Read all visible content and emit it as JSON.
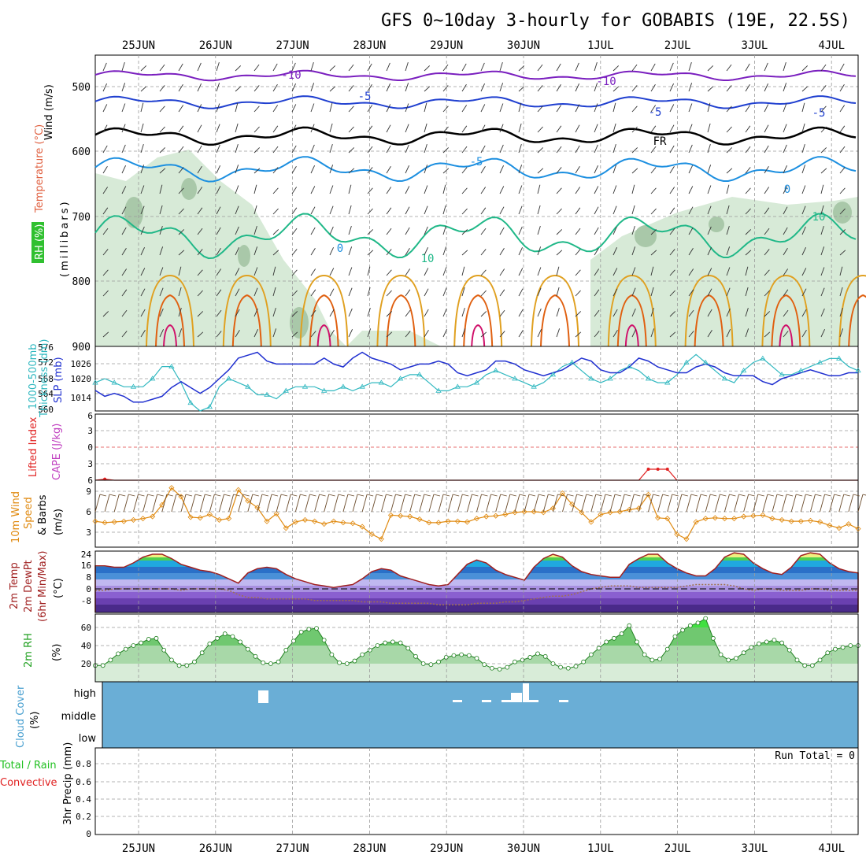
{
  "title": "GFS 0~10day 3-hourly for GOBABIS (19E, 22.5S)",
  "dates": [
    "25JUN",
    "26JUN",
    "27JUN",
    "28JUN",
    "29JUN",
    "30JUN",
    "1JUL",
    "2JUL",
    "3JUL",
    "4JUL"
  ],
  "run_total": "Run Total = 0",
  "colors": {
    "frame": "#000000",
    "grid": "#9a9a9a",
    "rh_fill": "#d7ead7",
    "rh_fill_dark": "#a9c8a9",
    "t_minus10": "#7a1fbf",
    "t_minus5": "#2040d0",
    "t_5": "#1c8fe0",
    "t_10": "#20b888",
    "t_warm": "#e0a020",
    "t_hot": "#e06010",
    "t_vhot": "#d0106a",
    "thickness": "#30b8c0",
    "slp": "#2030d0",
    "lifted": "#e02020",
    "cape": "#c040c0",
    "wind": "#e08a10",
    "temp_line": "#a02020",
    "dew_line": "#a07050",
    "rh2m": "#208020",
    "cloud": "#6aaed6",
    "precip_total": "#20c020",
    "precip_conv": "#e02020"
  },
  "panels": {
    "upper": {
      "label_wind": "Wind (m/s)",
      "label_temp": "Temperature (°C)",
      "label_rh": "RH (%)",
      "label_mb": "(millibars)",
      "pressure_ticks": [
        "500",
        "600",
        "700",
        "800",
        "900"
      ],
      "contour_labels": [
        "-10",
        "-10",
        "-5",
        "-5",
        "FR",
        "-5",
        "0",
        "10",
        "-5",
        "0",
        "10"
      ]
    },
    "thickness_slp": {
      "label_a": "1000-500mb",
      "label_b": "Thickness (dm)",
      "label_c": "SLP (mb)",
      "left_ticks": [
        "576",
        "572",
        "568",
        "564",
        "560"
      ],
      "right_ticks": [
        "1026",
        "1020",
        "1014"
      ]
    },
    "li_cape": {
      "label_a": "Lifted Index",
      "label_b": "CAPE (J/kg)",
      "ticks": [
        "6",
        "3",
        "0",
        "3",
        "6"
      ]
    },
    "wind10m": {
      "label_a": "10m Wind",
      "label_b": "Speed",
      "label_c": "& Barbs",
      "label_d": "(m/s)",
      "ticks": [
        "9",
        "6",
        "3"
      ]
    },
    "temp2m": {
      "label_a": "2m Temp",
      "label_b": "2m DewPt",
      "label_c": "(6hr Min/Max)",
      "label_d": "(°C)",
      "ticks": [
        "24",
        "16",
        "8",
        "0",
        "-8"
      ]
    },
    "rh2m": {
      "label_a": "2m RH",
      "label_b": "(%)",
      "ticks": [
        "60",
        "40",
        "20"
      ]
    },
    "cloud": {
      "label_a": "Cloud Cover",
      "label_b": "(%)",
      "levels": [
        "high",
        "middle",
        "low"
      ]
    },
    "precip": {
      "label_a": "Total / Rain",
      "label_b": "Convective",
      "label_c": "3hr Precip (mm)",
      "ticks": [
        "0.8",
        "0.6",
        "0.4",
        "0.2",
        "0"
      ]
    }
  },
  "chart_data": [
    {
      "type": "line",
      "title": "1000-500mb Thickness (dm) / SLP (mb)",
      "series": [
        {
          "name": "Thickness",
          "values": [
            567,
            568,
            567,
            566,
            566,
            566,
            568,
            571,
            571,
            567,
            562,
            560,
            561,
            566,
            568,
            567,
            566,
            564,
            564,
            563,
            565,
            566,
            566,
            566,
            565,
            565,
            566,
            565,
            566,
            567,
            567,
            566,
            568,
            569,
            569,
            567,
            565,
            565,
            566,
            566,
            567,
            569,
            570,
            569,
            568,
            567,
            566,
            567,
            569,
            571,
            572,
            570,
            568,
            567,
            568,
            570,
            571,
            570,
            568,
            567,
            567,
            569,
            572,
            574,
            572,
            570,
            568,
            567,
            570,
            572,
            573,
            571,
            569,
            569,
            570,
            571,
            572,
            573,
            573,
            571,
            570
          ]
        },
        {
          "name": "SLP",
          "values": [
            1015,
            1013,
            1014,
            1013,
            1011,
            1011,
            1012,
            1013,
            1016,
            1018,
            1016,
            1014,
            1016,
            1019,
            1022,
            1026,
            1027,
            1028,
            1025,
            1024,
            1024,
            1024,
            1024,
            1024,
            1026,
            1024,
            1023,
            1026,
            1028,
            1026,
            1025,
            1024,
            1022,
            1023,
            1024,
            1024,
            1025,
            1024,
            1021,
            1020,
            1021,
            1022,
            1025,
            1025,
            1024,
            1022,
            1021,
            1020,
            1021,
            1022,
            1024,
            1026,
            1025,
            1022,
            1021,
            1021,
            1023,
            1026,
            1025,
            1023,
            1022,
            1021,
            1021,
            1023,
            1024,
            1023,
            1021,
            1020,
            1020,
            1020,
            1018,
            1017,
            1019,
            1020,
            1021,
            1022,
            1021,
            1020,
            1020,
            1021,
            1021
          ]
        }
      ]
    },
    {
      "type": "line",
      "title": "10m Wind Speed (m/s)",
      "series": [
        {
          "name": "Wind Speed",
          "values": [
            4.6,
            4.4,
            4.5,
            4.6,
            4.8,
            5.0,
            5.3,
            7.0,
            9.5,
            8.2,
            5.2,
            5.1,
            5.6,
            4.8,
            5.0,
            9.2,
            7.6,
            6.6,
            4.6,
            5.7,
            3.6,
            4.5,
            4.8,
            4.6,
            4.2,
            4.6,
            4.4,
            4.3,
            3.8,
            2.7,
            2.0,
            5.5,
            5.4,
            5.3,
            4.9,
            4.4,
            4.4,
            4.6,
            4.6,
            4.5,
            5.0,
            5.3,
            5.4,
            5.6,
            5.9,
            6.0,
            6.0,
            5.9,
            6.5,
            8.7,
            7.1,
            5.9,
            4.5,
            5.6,
            5.9,
            6.0,
            6.3,
            6.5,
            8.5,
            5.1,
            5.0,
            2.7,
            2.0,
            4.5,
            5.0,
            5.1,
            5.0,
            5.0,
            5.3,
            5.4,
            5.5,
            5.0,
            4.8,
            4.6,
            4.6,
            4.7,
            4.5,
            4.0,
            3.6,
            4.2,
            3.5
          ]
        }
      ]
    },
    {
      "type": "area",
      "title": "2m Temp / DewPt (°C)",
      "series": [
        {
          "name": "2m Temp",
          "values": [
            16,
            16,
            15,
            15,
            18,
            22,
            24,
            24,
            21,
            17,
            15,
            13,
            12,
            10,
            7,
            4,
            11,
            14,
            15,
            14,
            10,
            7,
            5,
            3,
            2,
            1,
            2,
            3,
            7,
            12,
            14,
            13,
            9,
            7,
            5,
            3,
            2,
            3,
            10,
            17,
            20,
            18,
            13,
            10,
            8,
            6,
            15,
            21,
            24,
            22,
            16,
            12,
            10,
            9,
            8,
            8,
            17,
            21,
            24,
            24,
            18,
            14,
            11,
            9,
            9,
            14,
            22,
            25,
            24,
            18,
            14,
            11,
            10,
            15,
            23,
            25,
            24,
            18,
            14,
            12,
            11
          ]
        },
        {
          "name": "2m DewPt",
          "values": [
            -1,
            -1,
            0,
            0,
            0,
            0,
            0,
            0,
            0,
            -1,
            0,
            0,
            0,
            0,
            -1,
            -4,
            -6,
            -6,
            -7,
            -7,
            -7,
            -7,
            -7,
            -8,
            -8,
            -8,
            -8,
            -8,
            -9,
            -9,
            -9,
            -10,
            -10,
            -10,
            -10,
            -10,
            -11,
            -11,
            -11,
            -11,
            -10,
            -10,
            -10,
            -9,
            -9,
            -8,
            -7,
            -6,
            -5,
            -5,
            -4,
            -2,
            0,
            1,
            2,
            2,
            2,
            1,
            1,
            1,
            1,
            1,
            2,
            3,
            3,
            3,
            3,
            2,
            0,
            -1,
            0,
            0,
            -1,
            -1,
            -1,
            0,
            0,
            -1,
            -1,
            -1,
            -1
          ]
        }
      ]
    },
    {
      "type": "area",
      "title": "2m RH (%)",
      "series": [
        {
          "name": "2m RH",
          "values": [
            18,
            18,
            24,
            31,
            36,
            40,
            43,
            47,
            48,
            35,
            24,
            18,
            18,
            22,
            32,
            42,
            48,
            53,
            50,
            44,
            36,
            28,
            21,
            20,
            22,
            35,
            45,
            55,
            58,
            59,
            46,
            30,
            21,
            20,
            23,
            30,
            35,
            40,
            43,
            44,
            43,
            37,
            28,
            20,
            19,
            22,
            27,
            29,
            30,
            29,
            26,
            19,
            15,
            14,
            16,
            22,
            24,
            27,
            31,
            28,
            20,
            16,
            15,
            17,
            22,
            30,
            37,
            44,
            48,
            53,
            62,
            44,
            30,
            24,
            25,
            36,
            50,
            57,
            62,
            65,
            70,
            48,
            30,
            24,
            26,
            32,
            38,
            42,
            44,
            46,
            43,
            35,
            24,
            18,
            18,
            24,
            32,
            36,
            38,
            40,
            40
          ]
        }
      ]
    },
    {
      "type": "line",
      "title": "Lifted Index / CAPE",
      "series": [
        {
          "name": "Lifted Index",
          "values": [
            6,
            5.8,
            6,
            6,
            6,
            6,
            6,
            6,
            6,
            6,
            6,
            6,
            6,
            6,
            6,
            6,
            6,
            6,
            6,
            6,
            6,
            6,
            6,
            6,
            6,
            6,
            6,
            6,
            6,
            6,
            6,
            6,
            6,
            6,
            6,
            6,
            6,
            6,
            6,
            6,
            6,
            6,
            6,
            6,
            6,
            6,
            6,
            6,
            6,
            6,
            6,
            6,
            6,
            6,
            6,
            6,
            6,
            6,
            4,
            4,
            4,
            6,
            6,
            6,
            6,
            6,
            6,
            6,
            6,
            6,
            6,
            6,
            6,
            6,
            6,
            6,
            6,
            6,
            6,
            6,
            6
          ]
        }
      ]
    },
    {
      "type": "bar",
      "title": "3hr Precip (mm)",
      "categories": [
        "25JUN",
        "26JUN",
        "27JUN",
        "28JUN",
        "29JUN",
        "30JUN",
        "1JUL",
        "2JUL",
        "3JUL",
        "4JUL"
      ],
      "values": [
        0,
        0,
        0,
        0,
        0,
        0,
        0,
        0,
        0,
        0
      ]
    }
  ]
}
